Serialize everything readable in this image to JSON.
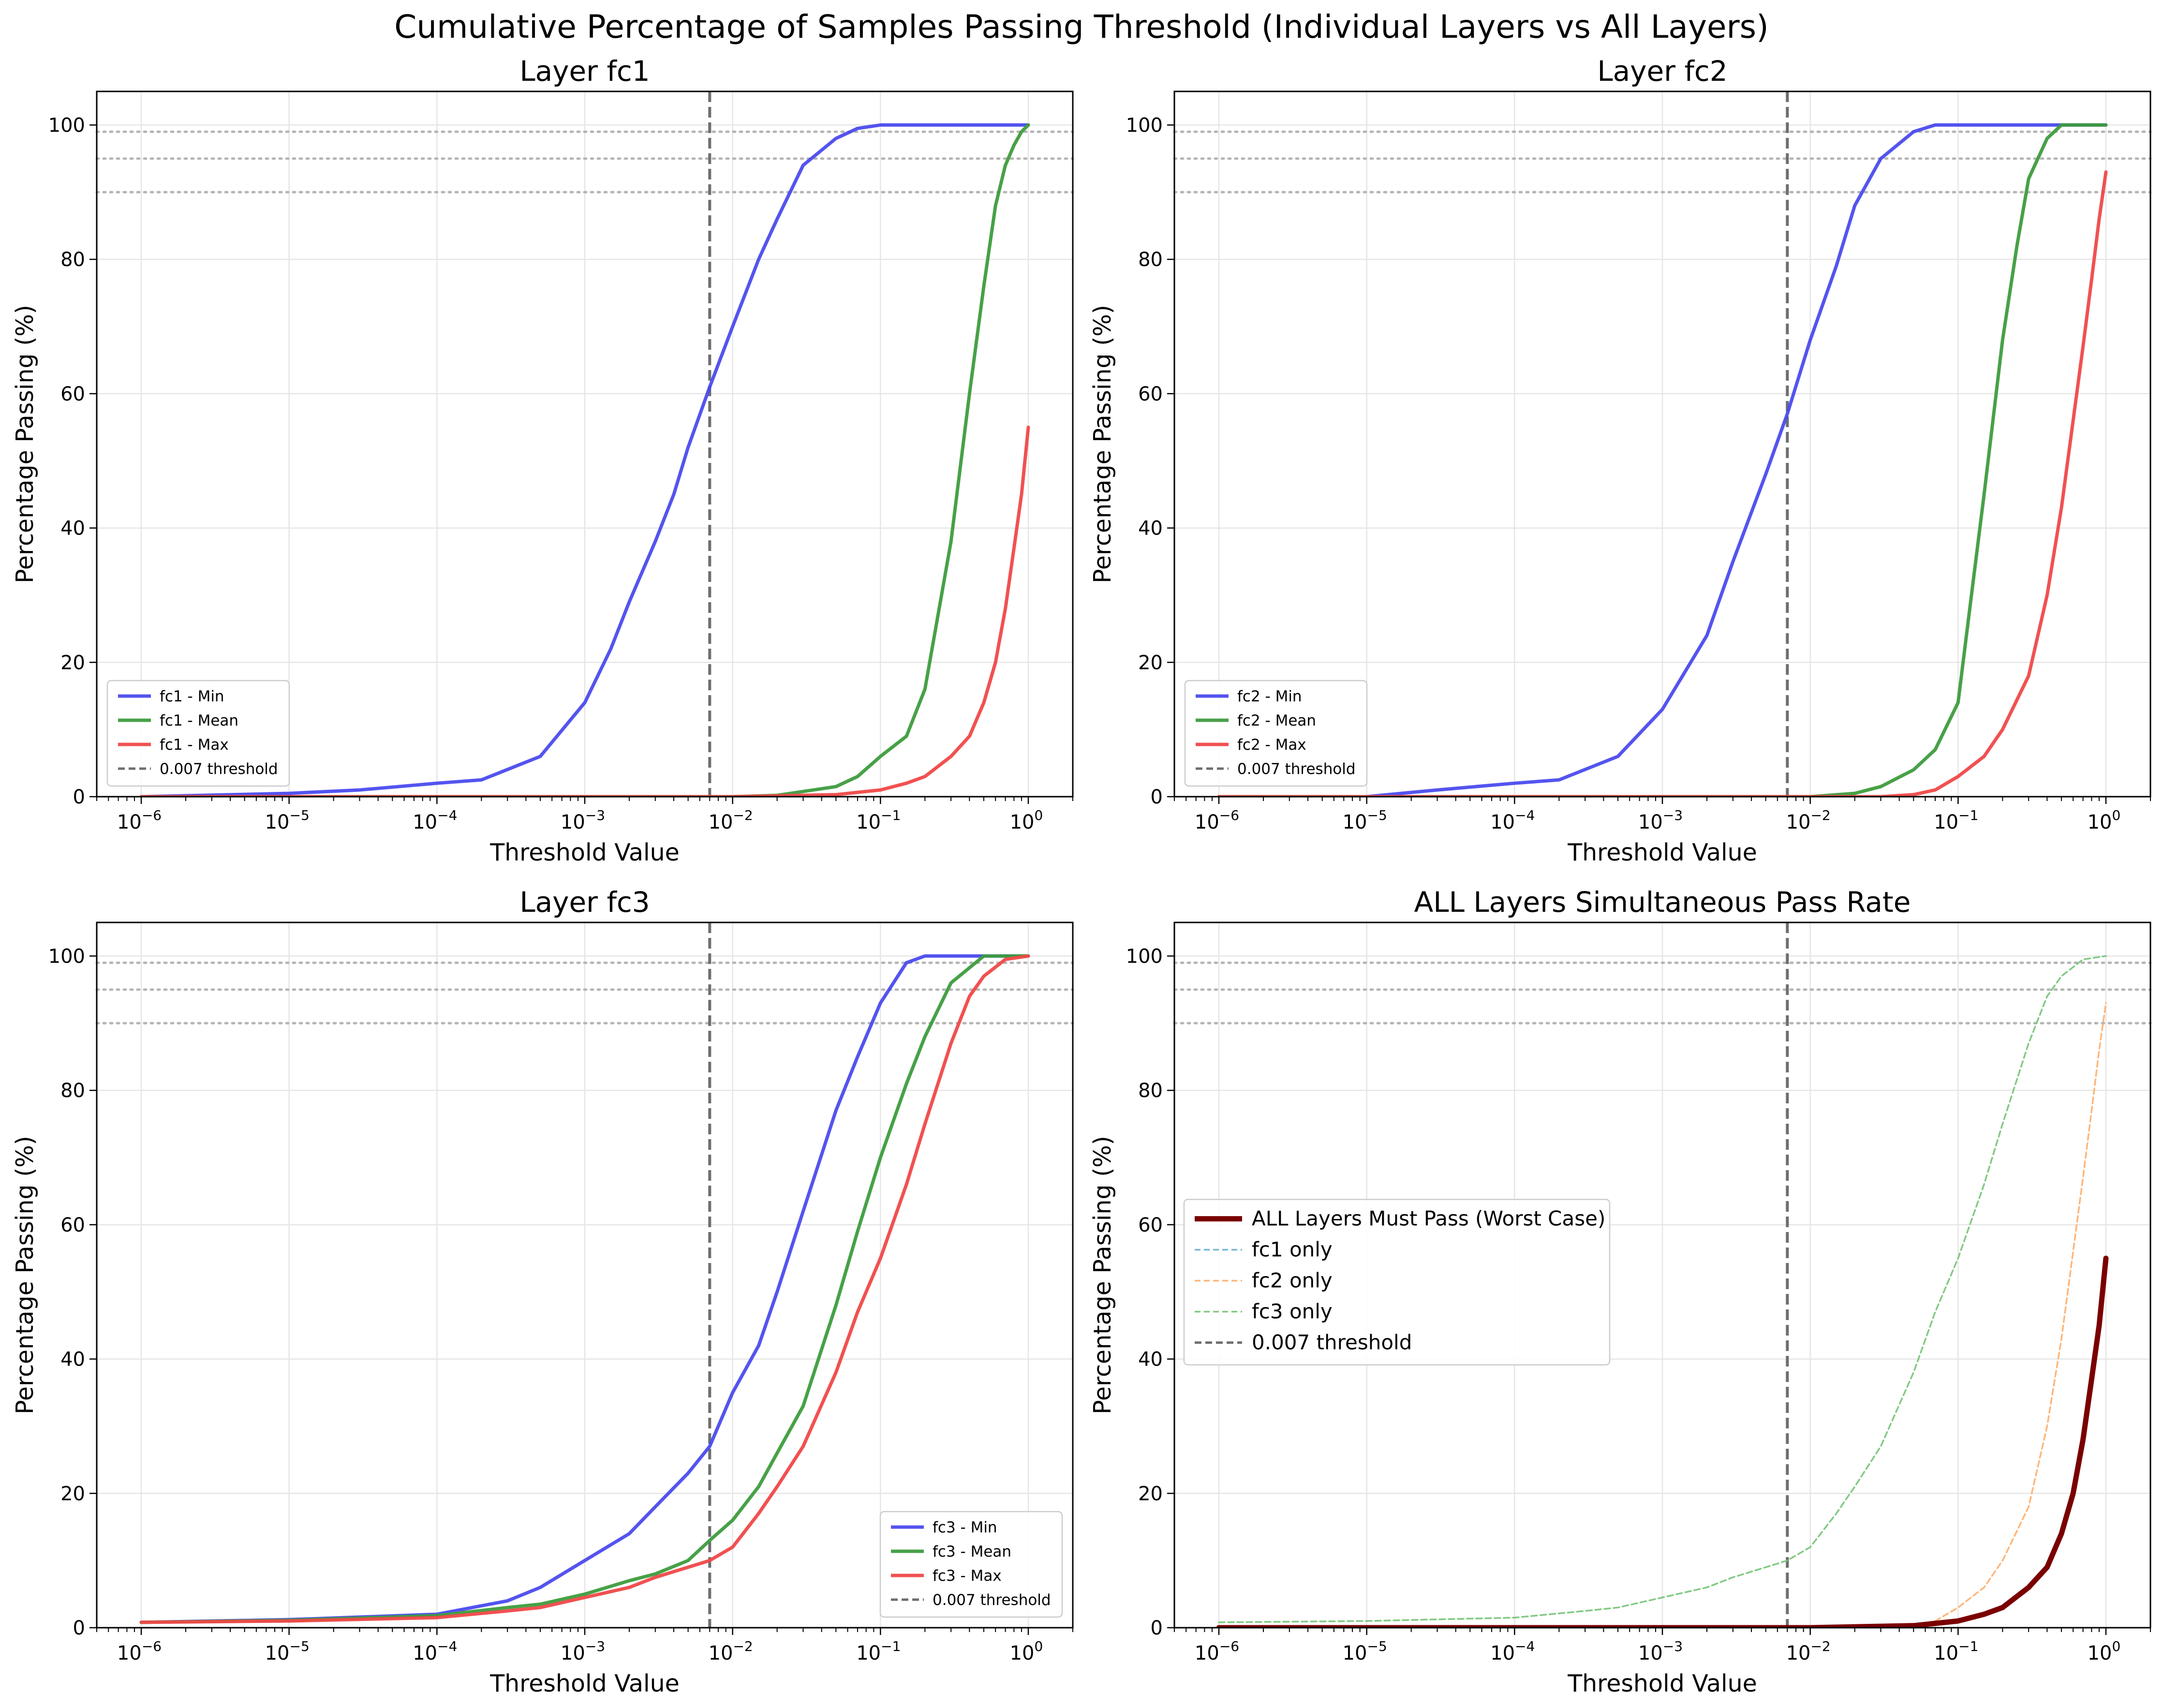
{
  "figure_title": "Cumulative Percentage of Samples Passing Threshold (Individual Layers vs All Layers)",
  "colors": {
    "min": "#4545ee",
    "mean": "#3d9c3d",
    "max": "#f04848",
    "all_layers": "#7a0000",
    "fc1_only": "#6baed6",
    "fc2_only": "#fdae6b",
    "fc3_only": "#74c476",
    "threshold_line": "#6e6e6e",
    "reference_lines": "#b5b5b5",
    "grid": "#e6e6e6"
  },
  "chart_data": [
    {
      "type": "line",
      "title": "Layer fc1",
      "xlabel": "Threshold Value",
      "ylabel": "Percentage Passing (%)",
      "xscale": "log",
      "xlim": [
        5e-07,
        2
      ],
      "ylim": [
        0,
        105
      ],
      "xticks": [
        1e-06,
        1e-05,
        0.0001,
        0.001,
        0.01,
        0.1,
        1
      ],
      "yticks": [
        0,
        20,
        40,
        60,
        80,
        100
      ],
      "grid": true,
      "legend_position": "lower-left",
      "threshold": 0.007,
      "reference_lines": [
        90,
        95,
        99
      ],
      "series": [
        {
          "name": "fc1 - Min",
          "style": "min",
          "x": [
            1e-06,
            1e-05,
            3e-05,
            0.0001,
            0.0002,
            0.0005,
            0.001,
            0.0015,
            0.002,
            0.003,
            0.004,
            0.005,
            0.007,
            0.01,
            0.015,
            0.02,
            0.03,
            0.05,
            0.07,
            0.1,
            0.2,
            0.5,
            1
          ],
          "values": [
            0,
            0.5,
            1,
            2,
            2.5,
            6,
            14,
            22,
            29,
            38,
            45,
            52,
            61,
            70,
            80,
            86,
            94,
            98,
            99.5,
            100,
            100,
            100,
            100
          ]
        },
        {
          "name": "fc1 - Mean",
          "style": "mean",
          "x": [
            1e-06,
            0.001,
            0.01,
            0.02,
            0.05,
            0.07,
            0.1,
            0.15,
            0.2,
            0.3,
            0.4,
            0.5,
            0.6,
            0.7,
            0.8,
            0.9,
            1
          ],
          "values": [
            0,
            0,
            0,
            0.2,
            1.5,
            3,
            6,
            9,
            16,
            38,
            60,
            76,
            88,
            94,
            97,
            99,
            100
          ]
        },
        {
          "name": "fc1 - Max",
          "style": "max",
          "x": [
            1e-06,
            0.01,
            0.05,
            0.1,
            0.15,
            0.2,
            0.3,
            0.4,
            0.5,
            0.6,
            0.7,
            0.8,
            0.9,
            1
          ],
          "values": [
            0,
            0,
            0.3,
            1,
            2,
            3,
            6,
            9,
            14,
            20,
            28,
            37,
            45,
            55
          ]
        }
      ],
      "legend": [
        "fc1 - Min",
        "fc1 - Mean",
        "fc1 - Max",
        "0.007 threshold"
      ]
    },
    {
      "type": "line",
      "title": "Layer fc2",
      "xlabel": "Threshold Value",
      "ylabel": "Percentage Passing (%)",
      "xscale": "log",
      "xlim": [
        5e-07,
        2
      ],
      "ylim": [
        0,
        105
      ],
      "xticks": [
        1e-06,
        1e-05,
        0.0001,
        0.001,
        0.01,
        0.1,
        1
      ],
      "yticks": [
        0,
        20,
        40,
        60,
        80,
        100
      ],
      "grid": true,
      "legend_position": "lower-left",
      "threshold": 0.007,
      "reference_lines": [
        90,
        95,
        99
      ],
      "series": [
        {
          "name": "fc2 - Min",
          "style": "min",
          "x": [
            1e-06,
            1e-05,
            3e-05,
            0.0001,
            0.0002,
            0.0005,
            0.001,
            0.002,
            0.003,
            0.005,
            0.007,
            0.01,
            0.015,
            0.02,
            0.03,
            0.05,
            0.07,
            0.1,
            1
          ],
          "values": [
            0,
            0,
            1,
            2,
            2.5,
            6,
            13,
            24,
            35,
            48,
            57,
            68,
            79,
            88,
            95,
            99,
            100,
            100,
            100
          ]
        },
        {
          "name": "fc2 - Mean",
          "style": "mean",
          "x": [
            1e-06,
            0.01,
            0.02,
            0.03,
            0.05,
            0.07,
            0.1,
            0.12,
            0.15,
            0.2,
            0.25,
            0.3,
            0.4,
            0.5,
            1
          ],
          "values": [
            0,
            0,
            0.5,
            1.5,
            4,
            7,
            14,
            28,
            45,
            68,
            82,
            92,
            98,
            100,
            100
          ]
        },
        {
          "name": "fc2 - Max",
          "style": "max",
          "x": [
            1e-06,
            0.03,
            0.05,
            0.07,
            0.1,
            0.15,
            0.2,
            0.3,
            0.4,
            0.5,
            0.6,
            0.7,
            0.8,
            0.9,
            1
          ],
          "values": [
            0,
            0,
            0.3,
            1,
            3,
            6,
            10,
            18,
            30,
            43,
            56,
            67,
            77,
            86,
            93
          ]
        }
      ],
      "legend": [
        "fc2 - Min",
        "fc2 - Mean",
        "fc2 - Max",
        "0.007 threshold"
      ]
    },
    {
      "type": "line",
      "title": "Layer fc3",
      "xlabel": "Threshold Value",
      "ylabel": "Percentage Passing (%)",
      "xscale": "log",
      "xlim": [
        5e-07,
        2
      ],
      "ylim": [
        0,
        105
      ],
      "xticks": [
        1e-06,
        1e-05,
        0.0001,
        0.001,
        0.01,
        0.1,
        1
      ],
      "yticks": [
        0,
        20,
        40,
        60,
        80,
        100
      ],
      "grid": true,
      "legend_position": "lower-right",
      "threshold": 0.007,
      "reference_lines": [
        90,
        95,
        99
      ],
      "series": [
        {
          "name": "fc3 - Min",
          "style": "min",
          "x": [
            1e-06,
            1e-05,
            0.0001,
            0.0003,
            0.0005,
            0.001,
            0.002,
            0.003,
            0.005,
            0.007,
            0.01,
            0.015,
            0.02,
            0.03,
            0.05,
            0.07,
            0.1,
            0.15,
            0.2,
            0.3,
            1
          ],
          "values": [
            0.8,
            1.2,
            2,
            4,
            6,
            10,
            14,
            18,
            23,
            27,
            35,
            42,
            50,
            62,
            77,
            85,
            93,
            99,
            100,
            100,
            100
          ]
        },
        {
          "name": "fc3 - Mean",
          "style": "mean",
          "x": [
            1e-06,
            1e-05,
            0.0001,
            0.0003,
            0.0005,
            0.001,
            0.002,
            0.003,
            0.005,
            0.007,
            0.01,
            0.015,
            0.02,
            0.03,
            0.05,
            0.07,
            0.1,
            0.15,
            0.2,
            0.3,
            0.5,
            1
          ],
          "values": [
            0.8,
            1.1,
            1.8,
            3,
            3.5,
            5,
            7,
            8,
            10,
            13,
            16,
            21,
            26,
            33,
            48,
            59,
            70,
            81,
            88,
            96,
            100,
            100
          ]
        },
        {
          "name": "fc3 - Max",
          "style": "max",
          "x": [
            1e-06,
            1e-05,
            0.0001,
            0.0003,
            0.0005,
            0.001,
            0.002,
            0.003,
            0.005,
            0.007,
            0.01,
            0.015,
            0.02,
            0.03,
            0.05,
            0.07,
            0.1,
            0.15,
            0.2,
            0.3,
            0.4,
            0.5,
            0.7,
            1
          ],
          "values": [
            0.8,
            1,
            1.5,
            2.5,
            3,
            4.5,
            6,
            7.5,
            9,
            10,
            12,
            17,
            21,
            27,
            38,
            47,
            55,
            66,
            75,
            87,
            94,
            97,
            99.5,
            100
          ]
        }
      ],
      "legend": [
        "fc3 - Min",
        "fc3 - Mean",
        "fc3 - Max",
        "0.007 threshold"
      ]
    },
    {
      "type": "line",
      "title": "ALL Layers Simultaneous Pass Rate",
      "xlabel": "Threshold Value",
      "ylabel": "Percentage Passing (%)",
      "xscale": "log",
      "xlim": [
        5e-07,
        2
      ],
      "ylim": [
        0,
        105
      ],
      "xticks": [
        1e-06,
        1e-05,
        0.0001,
        0.001,
        0.01,
        0.1,
        1
      ],
      "yticks": [
        0,
        20,
        40,
        60,
        80,
        100
      ],
      "grid": true,
      "legend_position": "center-left",
      "threshold": 0.007,
      "reference_lines": [
        90,
        95,
        99
      ],
      "series": [
        {
          "name": "ALL Layers Must Pass (Worst Case)",
          "style": "all",
          "x": [
            1e-06,
            0.01,
            0.05,
            0.1,
            0.15,
            0.2,
            0.3,
            0.4,
            0.5,
            0.6,
            0.7,
            0.8,
            0.9,
            1
          ],
          "values": [
            0,
            0,
            0.3,
            1,
            2,
            3,
            6,
            9,
            14,
            20,
            28,
            37,
            45,
            55
          ]
        },
        {
          "name": "fc1 only",
          "style": "fc1only",
          "x": [
            1e-06,
            0.01,
            0.05,
            0.1,
            0.15,
            0.2,
            0.3,
            0.4,
            0.5,
            0.6,
            0.7,
            0.8,
            0.9,
            1
          ],
          "values": [
            0,
            0,
            0.3,
            1,
            2,
            3,
            6,
            9,
            14,
            20,
            28,
            37,
            45,
            55
          ]
        },
        {
          "name": "fc2 only",
          "style": "fc2only",
          "x": [
            1e-06,
            0.03,
            0.05,
            0.07,
            0.1,
            0.15,
            0.2,
            0.3,
            0.4,
            0.5,
            0.6,
            0.7,
            0.8,
            0.9,
            1
          ],
          "values": [
            0,
            0,
            0.3,
            1,
            3,
            6,
            10,
            18,
            30,
            43,
            56,
            67,
            77,
            86,
            93
          ]
        },
        {
          "name": "fc3 only",
          "style": "fc3only",
          "x": [
            1e-06,
            1e-05,
            0.0001,
            0.0003,
            0.0005,
            0.001,
            0.002,
            0.003,
            0.005,
            0.007,
            0.01,
            0.015,
            0.02,
            0.03,
            0.05,
            0.07,
            0.1,
            0.15,
            0.2,
            0.3,
            0.4,
            0.5,
            0.7,
            1
          ],
          "values": [
            0.8,
            1,
            1.5,
            2.5,
            3,
            4.5,
            6,
            7.5,
            9,
            10,
            12,
            17,
            21,
            27,
            38,
            47,
            55,
            66,
            75,
            87,
            94,
            97,
            99.5,
            100
          ]
        }
      ],
      "legend": [
        "ALL Layers Must Pass (Worst Case)",
        "fc1 only",
        "fc2 only",
        "fc3 only",
        "0.007 threshold"
      ]
    }
  ]
}
